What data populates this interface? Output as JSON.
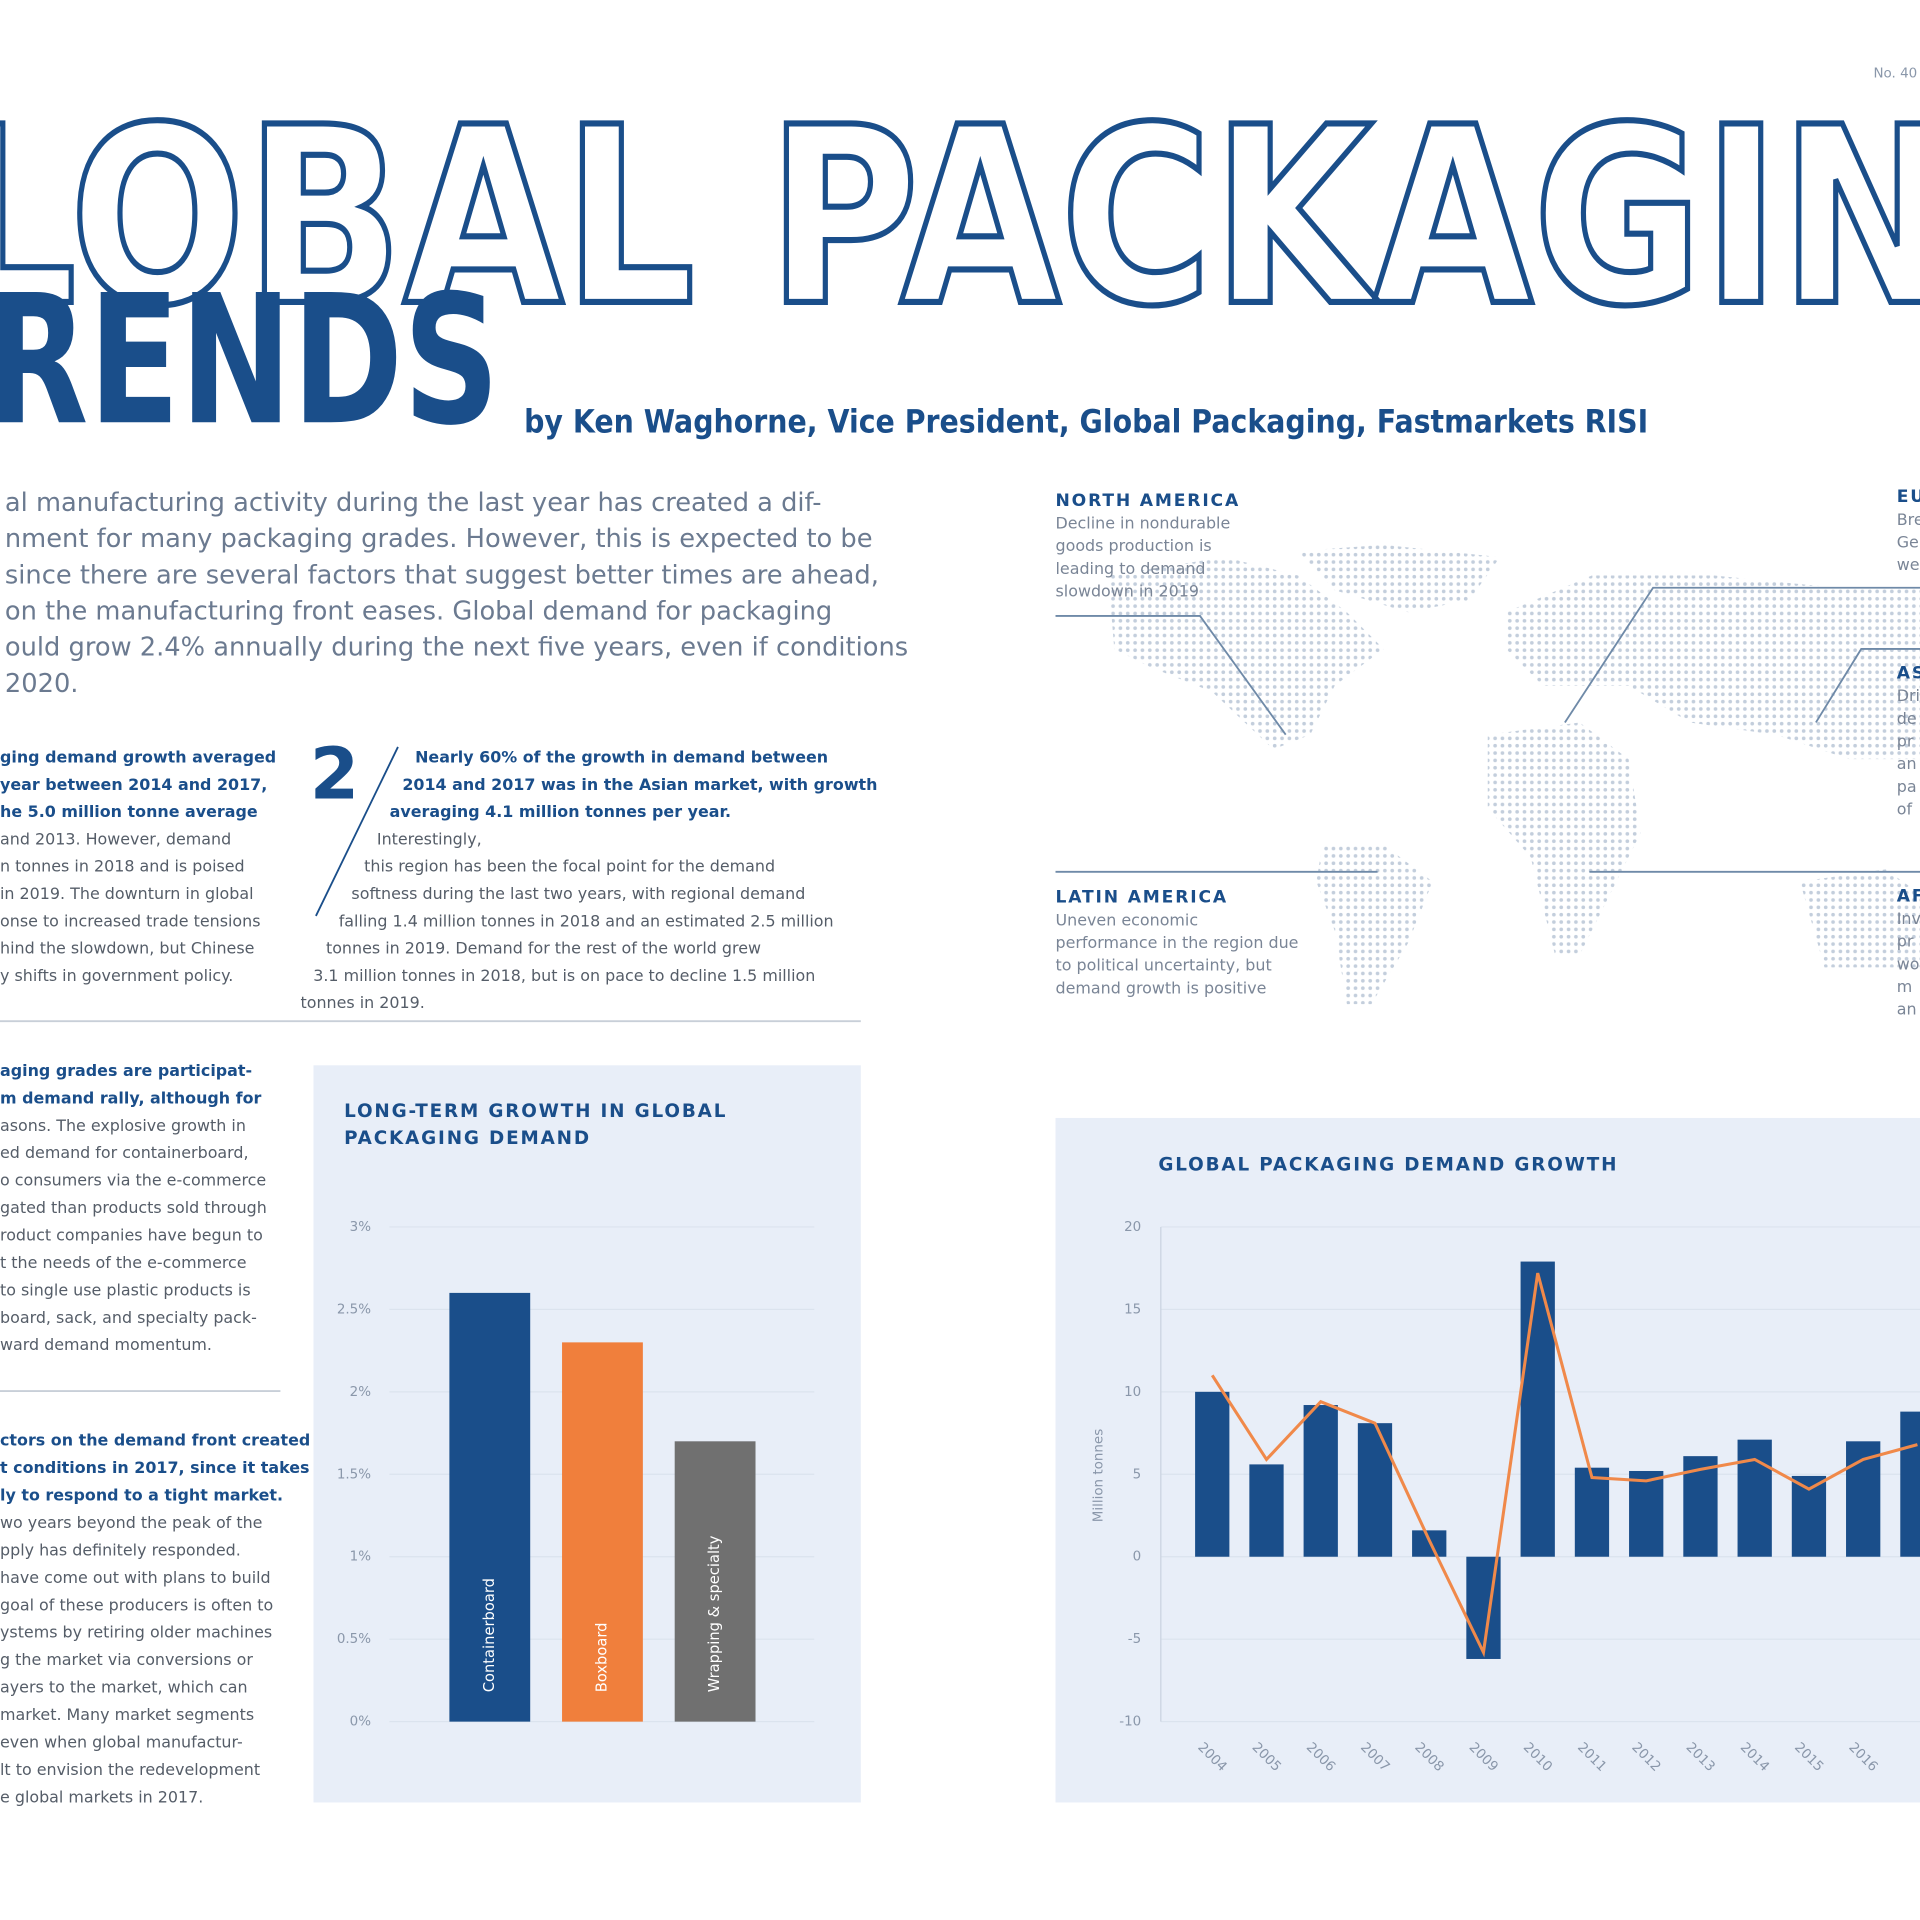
{
  "page_number": "No. 40",
  "title": {
    "line1": "LOBAL PACKAGIN",
    "line2": "RENDS"
  },
  "byline": "by Ken Waghorne, Vice President, Global Packaging, Fastmarkets RISI",
  "intro": [
    "al manufacturing activity during the last year has created a dif-",
    "nment for many packaging grades. However, this is expected to be",
    "since there are several factors that suggest better times are ahead,",
    "on the manufacturing front eases. Global demand for packaging",
    "ould grow 2.4% annually during the next five years, even if conditions",
    "2020."
  ],
  "columns": [
    {
      "lead": [
        "ging demand growth averaged",
        "year between 2014 and 2017,",
        "he 5.0 million tonne average"
      ],
      "body": [
        "and 2013. However, demand",
        "n tonnes in 2018 and is poised",
        "in 2019. The downturn in global",
        "onse to increased trade tensions",
        "hind the slowdown, but Chinese",
        "y shifts in government policy."
      ]
    },
    {
      "number": "2",
      "lead": [
        "Nearly 60% of the growth in demand between",
        "2014 and 2017 was in the Asian market, with growth",
        "averaging 4.1 million tonnes per year."
      ],
      "body": [
        "Interestingly,",
        "this region has been the focal point for the demand",
        "softness during the last two years, with regional demand",
        "falling 1.4 million tonnes in 2018 and an estimated 2.5 million",
        "tonnes in 2019. Demand for the rest of the world grew",
        "3.1 million tonnes in 2018, but is on pace to decline 1.5 million",
        "tonnes in 2019."
      ]
    },
    {
      "lead": [
        "aging grades are participat-",
        "m demand rally, although for"
      ],
      "body": [
        "asons. The explosive growth in",
        "ed demand for containerboard,",
        "o consumers via the e-commerce",
        "gated than products sold through",
        "roduct companies have begun to",
        "t the needs of the e-commerce",
        "to single use plastic products is",
        "board, sack, and specialty pack-",
        "ward demand momentum."
      ]
    },
    {
      "lead": [
        "ctors on the demand front created",
        "t conditions in 2017, since it takes",
        "ly to respond to a tight market."
      ],
      "body": [
        "wo years beyond the peak of the",
        "pply has definitely responded.",
        "have come out with plans to build",
        "goal of these producers is often to",
        "ystems by retiring older machines",
        "g the market via conversions or",
        "ayers to the market, which can",
        "market. Many market segments",
        "even when global manufactur-",
        "lt to envision the redevelopment",
        "e global markets in 2017."
      ]
    }
  ],
  "map": {
    "regions": [
      {
        "name": "NORTH AMERICA",
        "text": [
          "Decline in nondurable",
          "goods production is",
          "leading to demand",
          "slowdown in 2019"
        ]
      },
      {
        "name": "LATIN AMERICA",
        "text": [
          "Uneven economic",
          "performance in the region due",
          "to political uncertainty, but",
          "demand growth is positive"
        ]
      },
      {
        "name": "EU",
        "text": [
          "Bre",
          "Ge",
          "we"
        ]
      },
      {
        "name": "AS",
        "text": [
          "Dri",
          "de",
          "pr",
          "an",
          "pa",
          "of"
        ]
      },
      {
        "name": "AF",
        "text": [
          "Inv",
          "pr",
          "wo",
          "m",
          "an"
        ]
      }
    ]
  },
  "chart_data": [
    {
      "type": "bar",
      "title": [
        "LONG-TERM GROWTH IN GLOBAL",
        "PACKAGING DEMAND"
      ],
      "categories": [
        "Containerboard",
        "Boxboard",
        "Wrapping & specialty"
      ],
      "values": [
        2.6,
        2.3,
        1.7
      ],
      "colors": [
        "#1a4e8a",
        "#f07f3c",
        "#707070"
      ],
      "ylim": [
        0,
        3
      ],
      "yticks": [
        {
          "value": 0,
          "label": "0%"
        },
        {
          "value": 0.5,
          "label": "0.5%"
        },
        {
          "value": 1,
          "label": "1%"
        },
        {
          "value": 1.5,
          "label": "1.5%"
        },
        {
          "value": 2,
          "label": "2%"
        },
        {
          "value": 2.5,
          "label": "2.5%"
        },
        {
          "value": 3,
          "label": "3%"
        }
      ],
      "grid": true
    },
    {
      "type": "bar_line",
      "title": "GLOBAL PACKAGING DEMAND GROWTH",
      "ylabel": "Million tonnes",
      "categories": [
        "2004",
        "2005",
        "2006",
        "2007",
        "2008",
        "2009",
        "2010",
        "2011",
        "2012",
        "2013",
        "2014",
        "2015",
        "2016",
        null
      ],
      "series": [
        {
          "type": "bar",
          "color": "#1a4e8a",
          "values": [
            10,
            5.6,
            9.2,
            8.1,
            1.6,
            -6.2,
            17.9,
            5.4,
            5.2,
            6.1,
            7.1,
            4.9,
            7.0,
            8.8
          ]
        },
        {
          "type": "line",
          "color": "#f0894a",
          "values": [
            11.0,
            5.9,
            9.4,
            8.1,
            1.0,
            -5.8,
            17.2,
            4.8,
            4.6,
            5.3,
            5.9,
            4.1,
            5.9,
            6.8
          ]
        }
      ],
      "ylim": [
        -10,
        20
      ],
      "yticks": [
        -10,
        -5,
        0,
        5,
        10,
        15,
        20
      ],
      "grid": true
    }
  ]
}
